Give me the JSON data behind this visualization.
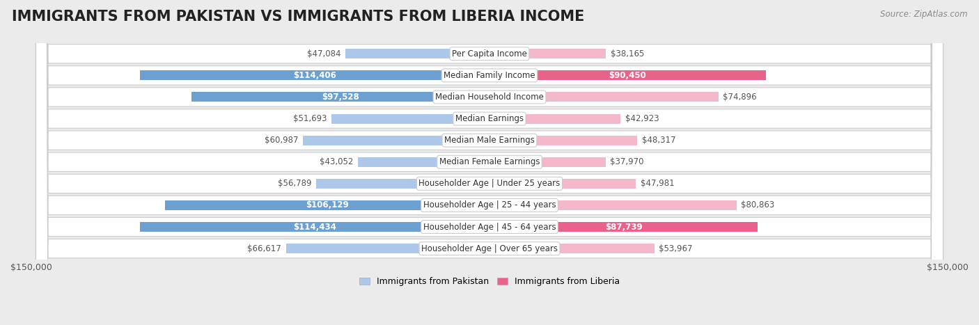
{
  "title": "IMMIGRANTS FROM PAKISTAN VS IMMIGRANTS FROM LIBERIA INCOME",
  "source": "Source: ZipAtlas.com",
  "categories": [
    "Per Capita Income",
    "Median Family Income",
    "Median Household Income",
    "Median Earnings",
    "Median Male Earnings",
    "Median Female Earnings",
    "Householder Age | Under 25 years",
    "Householder Age | 25 - 44 years",
    "Householder Age | 45 - 64 years",
    "Householder Age | Over 65 years"
  ],
  "pakistan_values": [
    47084,
    114406,
    97528,
    51693,
    60987,
    43052,
    56789,
    106129,
    114434,
    66617
  ],
  "liberia_values": [
    38165,
    90450,
    74896,
    42923,
    48317,
    37970,
    47981,
    80863,
    87739,
    53967
  ],
  "pakistan_color_light": "#adc8e8",
  "pakistan_color_strong": "#6ca0d0",
  "liberia_color_light": "#f4b8cb",
  "liberia_color_strong": "#e8628a",
  "max_value": 150000,
  "bg_color": "#ebebeb",
  "row_bg_color": "#ffffff",
  "row_border_color": "#cccccc",
  "title_fontsize": 15,
  "label_fontsize": 8.5,
  "value_fontsize": 8.5,
  "legend_pakistan": "Immigrants from Pakistan",
  "legend_liberia": "Immigrants from Liberia",
  "strong_threshold": 0.55
}
